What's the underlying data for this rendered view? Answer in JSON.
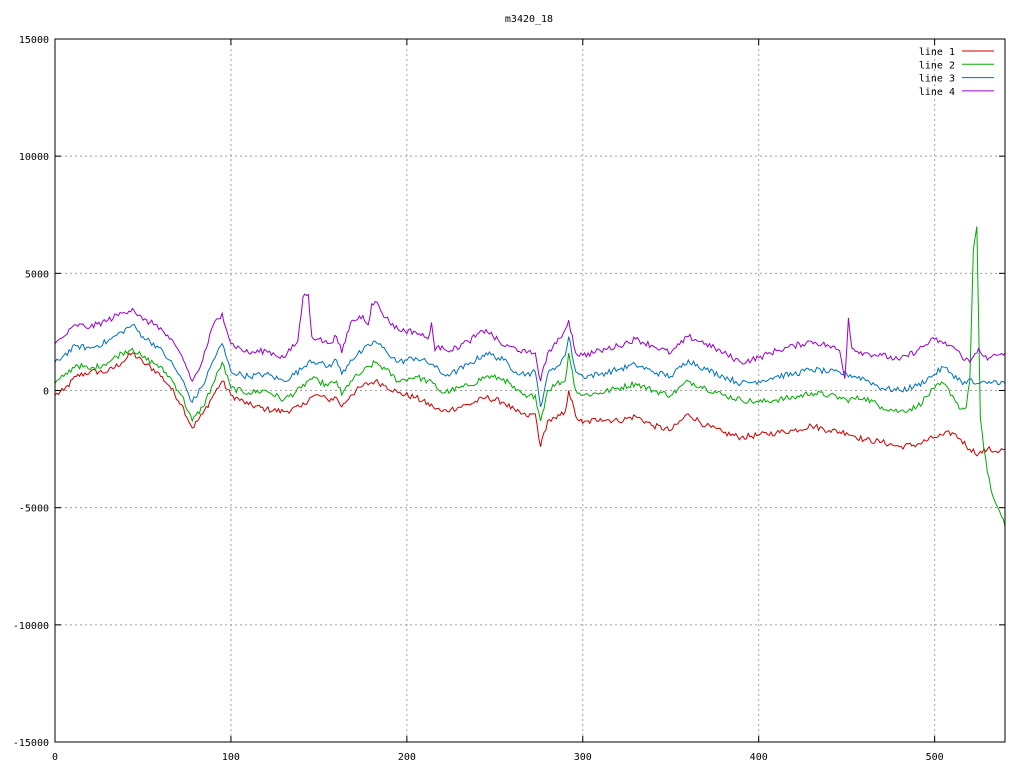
{
  "chart_data": {
    "type": "line",
    "title": "m3420_18",
    "xlabel": "",
    "ylabel": "",
    "xlim": [
      0,
      540
    ],
    "ylim": [
      -15000,
      15000
    ],
    "xticks": [
      0,
      100,
      200,
      300,
      400,
      500
    ],
    "yticks": [
      -15000,
      -10000,
      -5000,
      0,
      5000,
      10000,
      15000
    ],
    "grid": true,
    "legend_position": "top-right",
    "series": [
      {
        "name": "line 1",
        "color": "#cc0000",
        "x": [
          0,
          5,
          12,
          20,
          30,
          38,
          44,
          50,
          58,
          65,
          72,
          78,
          84,
          90,
          95,
          100,
          110,
          120,
          130,
          140,
          145,
          150,
          155,
          160,
          163,
          168,
          175,
          182,
          188,
          195,
          205,
          215,
          220,
          225,
          235,
          245,
          255,
          262,
          268,
          273,
          276,
          280,
          285,
          290,
          292,
          296,
          300,
          310,
          320,
          330,
          340,
          350,
          360,
          370,
          380,
          390,
          400,
          410,
          420,
          430,
          440,
          450,
          460,
          470,
          480,
          490,
          500,
          505,
          510,
          515,
          520,
          525,
          530,
          535,
          540
        ],
        "y": [
          -200,
          0,
          600,
          800,
          800,
          1200,
          1600,
          1200,
          800,
          200,
          -600,
          -1600,
          -1000,
          -200,
          400,
          -200,
          -600,
          -800,
          -900,
          -700,
          -300,
          -200,
          -400,
          -300,
          -700,
          -200,
          200,
          400,
          200,
          -100,
          -300,
          -700,
          -900,
          -800,
          -600,
          -300,
          -500,
          -900,
          -1100,
          -1000,
          -2400,
          -1300,
          -1200,
          -900,
          0,
          -1100,
          -1400,
          -1200,
          -1300,
          -1100,
          -1500,
          -1700,
          -1000,
          -1500,
          -1800,
          -2000,
          -1900,
          -1800,
          -1700,
          -1500,
          -1700,
          -1800,
          -2100,
          -2200,
          -2400,
          -2300,
          -2000,
          -1900,
          -1800,
          -2100,
          -2500,
          -2700,
          -2500,
          -2600,
          -2500
        ]
      },
      {
        "name": "line 2",
        "color": "#00aa00",
        "x": [
          0,
          5,
          12,
          20,
          30,
          38,
          44,
          50,
          58,
          65,
          72,
          78,
          84,
          90,
          95,
          100,
          110,
          120,
          130,
          140,
          145,
          150,
          155,
          160,
          163,
          168,
          175,
          182,
          188,
          195,
          205,
          215,
          220,
          225,
          235,
          245,
          255,
          262,
          268,
          273,
          276,
          280,
          285,
          290,
          292,
          296,
          300,
          310,
          320,
          330,
          340,
          350,
          360,
          370,
          380,
          390,
          400,
          410,
          420,
          430,
          440,
          450,
          460,
          470,
          480,
          490,
          500,
          505,
          510,
          515,
          518,
          520,
          522,
          524,
          526,
          528,
          530,
          533,
          536,
          540
        ],
        "y": [
          300,
          600,
          1100,
          900,
          1200,
          1600,
          1800,
          1400,
          1100,
          600,
          -200,
          -1300,
          -700,
          300,
          1200,
          100,
          -100,
          0,
          -400,
          100,
          500,
          400,
          200,
          400,
          -200,
          400,
          800,
          1200,
          900,
          400,
          600,
          300,
          -100,
          0,
          200,
          600,
          500,
          0,
          -300,
          -200,
          -1300,
          0,
          300,
          400,
          1600,
          0,
          -200,
          -100,
          100,
          300,
          0,
          -200,
          400,
          100,
          -200,
          -400,
          -500,
          -400,
          -300,
          -100,
          -200,
          -400,
          -300,
          -700,
          -900,
          -700,
          100,
          300,
          -200,
          -800,
          -700,
          400,
          6000,
          7000,
          -1200,
          -2500,
          -3500,
          -4500,
          -5000,
          -5800
        ]
      },
      {
        "name": "line 3",
        "color": "#0070c0",
        "x": [
          0,
          5,
          12,
          20,
          30,
          38,
          44,
          50,
          58,
          65,
          72,
          78,
          84,
          90,
          95,
          100,
          110,
          120,
          130,
          140,
          145,
          150,
          155,
          160,
          163,
          168,
          175,
          182,
          188,
          195,
          205,
          215,
          220,
          225,
          235,
          245,
          255,
          262,
          268,
          273,
          276,
          280,
          285,
          290,
          292,
          296,
          300,
          310,
          320,
          330,
          340,
          350,
          360,
          370,
          380,
          390,
          400,
          410,
          420,
          430,
          440,
          450,
          460,
          470,
          480,
          490,
          500,
          505,
          510,
          515,
          518,
          520,
          522,
          525,
          530,
          535,
          540
        ],
        "y": [
          1200,
          1500,
          1900,
          1800,
          2100,
          2500,
          2800,
          2300,
          1900,
          1300,
          500,
          -500,
          200,
          1300,
          2000,
          800,
          600,
          700,
          400,
          900,
          1300,
          1200,
          1000,
          1300,
          700,
          1300,
          1700,
          2100,
          1700,
          1200,
          1400,
          1100,
          700,
          700,
          1100,
          1600,
          1300,
          800,
          700,
          800,
          -700,
          700,
          1000,
          1500,
          2300,
          800,
          600,
          700,
          900,
          1100,
          800,
          600,
          1300,
          900,
          600,
          300,
          400,
          600,
          700,
          900,
          800,
          700,
          500,
          100,
          0,
          200,
          700,
          1000,
          700,
          400,
          300,
          500,
          300,
          300,
          300,
          400,
          300
        ]
      },
      {
        "name": "line 4",
        "color": "#9900cc",
        "x": [
          0,
          5,
          12,
          20,
          30,
          38,
          44,
          50,
          58,
          65,
          72,
          78,
          82,
          86,
          90,
          95,
          100,
          110,
          120,
          130,
          138,
          141,
          144,
          146,
          150,
          155,
          160,
          163,
          168,
          175,
          178,
          180,
          182,
          188,
          195,
          205,
          212,
          214,
          216,
          220,
          225,
          235,
          245,
          255,
          262,
          268,
          273,
          276,
          280,
          285,
          290,
          292,
          296,
          300,
          310,
          320,
          330,
          340,
          350,
          360,
          370,
          380,
          390,
          400,
          410,
          420,
          430,
          440,
          446,
          449,
          451,
          453,
          460,
          470,
          480,
          490,
          500,
          505,
          510,
          515,
          520,
          525,
          530,
          535,
          540
        ],
        "y": [
          2000,
          2300,
          2800,
          2700,
          3000,
          3300,
          3500,
          3000,
          2800,
          2200,
          1500,
          400,
          900,
          1800,
          2800,
          3300,
          2000,
          1600,
          1700,
          1400,
          2100,
          4000,
          4100,
          2300,
          2200,
          2000,
          2300,
          1600,
          2900,
          3200,
          2800,
          3700,
          3800,
          3100,
          2600,
          2500,
          2200,
          2900,
          1700,
          1900,
          1700,
          2100,
          2600,
          1900,
          1800,
          1600,
          1600,
          400,
          1600,
          2000,
          2600,
          3000,
          1600,
          1500,
          1700,
          1900,
          2200,
          1900,
          1600,
          2300,
          2000,
          1600,
          1200,
          1400,
          1700,
          1900,
          2100,
          1900,
          1700,
          500,
          3100,
          1800,
          1600,
          1500,
          1300,
          1700,
          2200,
          2000,
          1900,
          1500,
          1200,
          1800,
          1300,
          1500,
          1600
        ]
      }
    ]
  }
}
